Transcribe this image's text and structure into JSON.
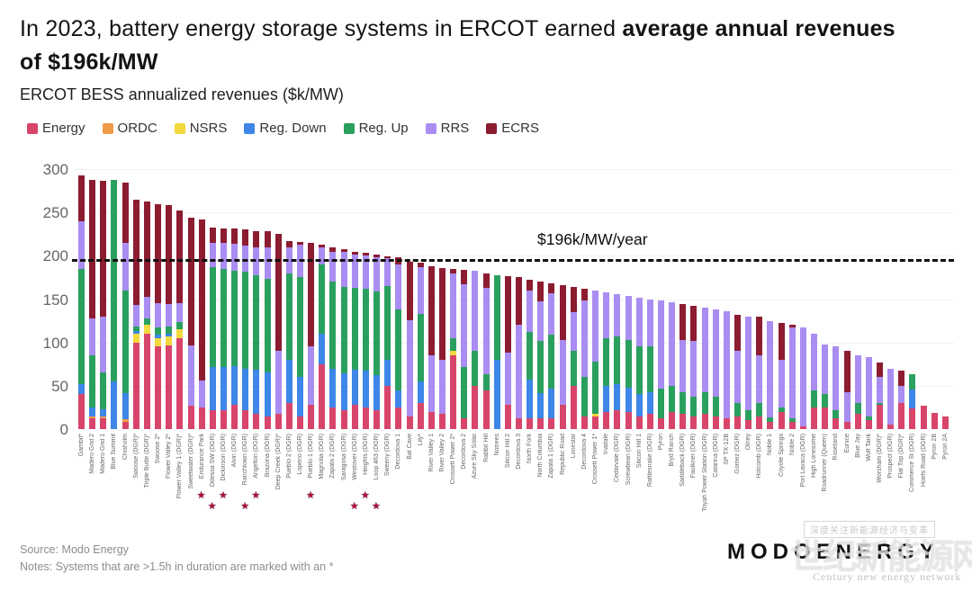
{
  "header": {
    "title_regular": "In 2023, battery energy storage systems in ERCOT earned ",
    "title_bold": "average annual revenues of $196k/MW",
    "subtitle": "ERCOT BESS annualized revenues ($k/MW)"
  },
  "legend": [
    {
      "label": "Energy",
      "color": "#d8456b"
    },
    {
      "label": "ORDC",
      "color": "#ee9b4a"
    },
    {
      "label": "NSRS",
      "color": "#f2d93d"
    },
    {
      "label": "Reg. Down",
      "color": "#3e86e8"
    },
    {
      "label": "Reg. Up",
      "color": "#2aa05f"
    },
    {
      "label": "RRS",
      "color": "#a98df2"
    },
    {
      "label": "ECRS",
      "color": "#8c1c30"
    }
  ],
  "y_axis": {
    "ticks": [
      0,
      50,
      100,
      150,
      200,
      250,
      300
    ]
  },
  "chart_data": {
    "type": "bar",
    "stacked": true,
    "title": "ERCOT BESS annualized revenues ($k/MW)",
    "ylabel": "$k/MW",
    "ylim": [
      0,
      300
    ],
    "grid": "faint-horizontal",
    "legend_position": "top-left",
    "average_line": {
      "value": 196,
      "label": "$196k/MW/year"
    },
    "segments": [
      "Energy",
      "ORDC",
      "NSRS",
      "Reg. Down",
      "Reg. Up",
      "RRS",
      "ECRS"
    ],
    "segment_colors": [
      "#d8456b",
      "#ee9b4a",
      "#f2d93d",
      "#3e86e8",
      "#2aa05f",
      "#a98df2",
      "#8c1c30"
    ],
    "bars": [
      {
        "label": "Gambit*",
        "v": [
          40,
          0,
          0,
          12,
          133,
          55,
          53
        ]
      },
      {
        "label": "Madero Grid 2",
        "v": [
          12,
          3,
          0,
          10,
          60,
          43,
          160
        ]
      },
      {
        "label": "Madero Grid 1",
        "v": [
          12,
          3,
          0,
          8,
          42,
          65,
          157
        ]
      },
      {
        "label": "Blue Summit",
        "v": [
          0,
          0,
          0,
          55,
          233,
          0,
          0
        ]
      },
      {
        "label": "Chisholm",
        "v": [
          8,
          3,
          0,
          31,
          118,
          55,
          69
        ]
      },
      {
        "label": "Swoose (DGR)*",
        "v": [
          100,
          0,
          10,
          3,
          5,
          25,
          122
        ]
      },
      {
        "label": "Triple Butte (DGR)*",
        "v": [
          110,
          0,
          10,
          0,
          8,
          25,
          110
        ]
      },
      {
        "label": "Swoose 2*",
        "v": [
          95,
          0,
          10,
          4,
          8,
          28,
          114
        ]
      },
      {
        "label": "Flower Valley 2*",
        "v": [
          97,
          0,
          10,
          3,
          8,
          26,
          114
        ]
      },
      {
        "label": "Flower Valley 1 (DGR)*",
        "v": [
          105,
          0,
          10,
          0,
          8,
          22,
          107
        ]
      },
      {
        "label": "Sweetwater (DGR)*",
        "v": [
          27,
          0,
          0,
          0,
          0,
          70,
          147
        ]
      },
      {
        "label": "Endurance Park",
        "v": [
          25,
          0,
          0,
          0,
          0,
          31,
          186
        ],
        "star": 1
      },
      {
        "label": "Odessa SW (DGR)",
        "v": [
          22,
          0,
          0,
          50,
          115,
          28,
          18
        ],
        "star": 2
      },
      {
        "label": "Dickinson (DGR)",
        "v": [
          22,
          0,
          0,
          50,
          113,
          30,
          17
        ],
        "star": 1
      },
      {
        "label": "Alvin (DGR)",
        "v": [
          28,
          0,
          0,
          45,
          110,
          31,
          17
        ]
      },
      {
        "label": "Ranchtown (DGR)",
        "v": [
          22,
          0,
          0,
          48,
          112,
          30,
          18
        ],
        "star": 2
      },
      {
        "label": "Angelton (DGR)",
        "v": [
          18,
          0,
          0,
          50,
          110,
          32,
          18
        ],
        "star": 1
      },
      {
        "label": "Brazoria (DGR)",
        "v": [
          15,
          0,
          0,
          50,
          108,
          37,
          18
        ]
      },
      {
        "label": "Deep Creek (DGR)*",
        "v": [
          18,
          0,
          0,
          0,
          0,
          72,
          135
        ]
      },
      {
        "label": "Pueblo 2 (DGR)",
        "v": [
          30,
          0,
          0,
          50,
          100,
          30,
          7
        ]
      },
      {
        "label": "Lopeno (DGR)",
        "v": [
          15,
          0,
          0,
          45,
          115,
          38,
          3
        ]
      },
      {
        "label": "Pueblo 1 (DGR)",
        "v": [
          28,
          0,
          0,
          0,
          0,
          67,
          120
        ],
        "star": 1
      },
      {
        "label": "Magnolia (DGR)",
        "v": [
          75,
          0,
          0,
          35,
          80,
          20,
          3
        ]
      },
      {
        "label": "Zapata 2 (DGR)",
        "v": [
          25,
          0,
          0,
          45,
          100,
          35,
          5
        ]
      },
      {
        "label": "Saragosa (DGR)",
        "v": [
          22,
          0,
          0,
          42,
          100,
          40,
          4
        ]
      },
      {
        "label": "Westover (DGR)",
        "v": [
          28,
          0,
          0,
          40,
          95,
          38,
          4
        ],
        "star": 2
      },
      {
        "label": "Heights (DGR)",
        "v": [
          25,
          0,
          0,
          42,
          95,
          38,
          3
        ],
        "star": 1
      },
      {
        "label": "Loop 463 (DGR)",
        "v": [
          22,
          0,
          0,
          40,
          97,
          39,
          3
        ],
        "star": 2
      },
      {
        "label": "Sweeny (DGR)",
        "v": [
          50,
          0,
          0,
          30,
          85,
          32,
          2
        ]
      },
      {
        "label": "Decordova 1",
        "v": [
          25,
          0,
          0,
          20,
          93,
          52,
          8
        ]
      },
      {
        "label": "Bat Cave",
        "v": [
          15,
          0,
          0,
          0,
          0,
          111,
          67
        ]
      },
      {
        "label": "Lily*",
        "v": [
          30,
          0,
          0,
          25,
          78,
          54,
          5
        ]
      },
      {
        "label": "River Valley 1",
        "v": [
          20,
          0,
          0,
          0,
          0,
          65,
          103
        ]
      },
      {
        "label": "River Valley 2",
        "v": [
          18,
          0,
          0,
          0,
          0,
          62,
          106
        ]
      },
      {
        "label": "Crossett Power 2*",
        "v": [
          85,
          0,
          5,
          0,
          15,
          75,
          5
        ]
      },
      {
        "label": "Decordova 2",
        "v": [
          12,
          0,
          0,
          0,
          60,
          95,
          17
        ]
      },
      {
        "label": "Azure Sky Solar",
        "v": [
          50,
          0,
          0,
          0,
          40,
          93,
          0
        ]
      },
      {
        "label": "Rabbit Hill",
        "v": [
          45,
          0,
          0,
          0,
          18,
          100,
          17
        ]
      },
      {
        "label": "Notrees",
        "v": [
          0,
          0,
          0,
          80,
          98,
          0,
          0
        ]
      },
      {
        "label": "Silicon Hill 2",
        "v": [
          28,
          0,
          0,
          0,
          0,
          60,
          88
        ]
      },
      {
        "label": "Decordova 3",
        "v": [
          12,
          0,
          0,
          0,
          0,
          108,
          55
        ]
      },
      {
        "label": "North Fork",
        "v": [
          12,
          0,
          0,
          45,
          55,
          48,
          12
        ]
      },
      {
        "label": "North Columbia",
        "v": [
          12,
          0,
          0,
          30,
          60,
          45,
          23
        ]
      },
      {
        "label": "Zapata 1 (DGR)",
        "v": [
          12,
          0,
          0,
          35,
          62,
          48,
          11
        ]
      },
      {
        "label": "Republic Road",
        "v": [
          28,
          0,
          0,
          0,
          0,
          75,
          63
        ]
      },
      {
        "label": "Lonestar",
        "v": [
          50,
          0,
          0,
          0,
          40,
          45,
          29
        ]
      },
      {
        "label": "Decordova 4",
        "v": [
          15,
          0,
          0,
          0,
          45,
          88,
          14
        ]
      },
      {
        "label": "Crossett Power 1*",
        "v": [
          15,
          0,
          3,
          0,
          60,
          82,
          0
        ]
      },
      {
        "label": "Inadale",
        "v": [
          20,
          0,
          0,
          30,
          55,
          53,
          0
        ]
      },
      {
        "label": "Cedarvale (DGR)",
        "v": [
          22,
          0,
          0,
          30,
          55,
          49,
          0
        ]
      },
      {
        "label": "Screwbean (DGR)",
        "v": [
          20,
          0,
          0,
          28,
          55,
          51,
          0
        ]
      },
      {
        "label": "Silicon Hill 1",
        "v": [
          15,
          0,
          0,
          25,
          55,
          57,
          0
        ]
      },
      {
        "label": "Rattlesnake (DGR)",
        "v": [
          18,
          0,
          0,
          25,
          52,
          55,
          0
        ]
      },
      {
        "label": "Pyron",
        "v": [
          12,
          0,
          0,
          0,
          35,
          101,
          0
        ]
      },
      {
        "label": "Bryd Ranch",
        "v": [
          20,
          0,
          0,
          0,
          30,
          96,
          0
        ]
      },
      {
        "label": "Saddleback (DGR)",
        "v": [
          18,
          0,
          0,
          0,
          25,
          60,
          41
        ]
      },
      {
        "label": "Faulkner (DGR)",
        "v": [
          15,
          0,
          0,
          0,
          22,
          65,
          40
        ]
      },
      {
        "label": "Toyah Power Station (DGR)",
        "v": [
          18,
          0,
          0,
          0,
          25,
          97,
          0
        ]
      },
      {
        "label": "Catarina (DGR)",
        "v": [
          15,
          0,
          0,
          0,
          22,
          101,
          0
        ]
      },
      {
        "label": "SP TX-12B",
        "v": [
          12,
          0,
          0,
          0,
          0,
          124,
          0
        ]
      },
      {
        "label": "Gomez (DGR)",
        "v": [
          15,
          0,
          0,
          0,
          15,
          60,
          42
        ]
      },
      {
        "label": "Olney",
        "v": [
          10,
          0,
          0,
          0,
          12,
          108,
          0
        ]
      },
      {
        "label": "Holcomb (DGR)",
        "v": [
          15,
          0,
          0,
          0,
          15,
          55,
          45
        ]
      },
      {
        "label": "Noble 1",
        "v": [
          8,
          0,
          0,
          0,
          5,
          112,
          0
        ]
      },
      {
        "label": "Coyote Springs",
        "v": [
          20,
          0,
          0,
          0,
          5,
          55,
          42
        ]
      },
      {
        "label": "Noble 2",
        "v": [
          8,
          0,
          0,
          0,
          4,
          105,
          3
        ]
      },
      {
        "label": "Port Lavaca (DGR)",
        "v": [
          3,
          0,
          0,
          0,
          0,
          114,
          0
        ]
      },
      {
        "label": "High Lonesome",
        "v": [
          25,
          0,
          0,
          0,
          20,
          65,
          0
        ]
      },
      {
        "label": "Roadrunner (Queen)",
        "v": [
          25,
          0,
          0,
          0,
          15,
          58,
          0
        ]
      },
      {
        "label": "Roseland",
        "v": [
          12,
          0,
          0,
          0,
          10,
          73,
          0
        ]
      },
      {
        "label": "Eunice",
        "v": [
          8,
          0,
          0,
          0,
          0,
          35,
          47
        ]
      },
      {
        "label": "Blue Jay",
        "v": [
          18,
          0,
          0,
          0,
          12,
          55,
          0
        ]
      },
      {
        "label": "Wolf Tank",
        "v": [
          10,
          0,
          0,
          0,
          5,
          68,
          0
        ]
      },
      {
        "label": "Worsham (DGR)*",
        "v": [
          28,
          0,
          0,
          0,
          2,
          30,
          17
        ]
      },
      {
        "label": "Prospect (DGR)",
        "v": [
          5,
          0,
          0,
          0,
          0,
          65,
          0
        ]
      },
      {
        "label": "Flat Top (DGR)*",
        "v": [
          30,
          0,
          0,
          0,
          0,
          20,
          17
        ]
      },
      {
        "label": "Commerce St (DGR)",
        "v": [
          24,
          0,
          0,
          22,
          17,
          0,
          0
        ]
      },
      {
        "label": "Hoefs Road (DGR)",
        "v": [
          27,
          0,
          0,
          0,
          0,
          0,
          0
        ]
      },
      {
        "label": "Pyron 2B",
        "v": [
          19,
          0,
          0,
          0,
          0,
          0,
          0
        ]
      },
      {
        "label": "Pyron 2A",
        "v": [
          15,
          0,
          0,
          0,
          0,
          0,
          0
        ]
      }
    ]
  },
  "footer": {
    "source": "Source: Modo Energy",
    "notes": "Notes: Systems that are >1.5h in duration are marked with an *"
  },
  "watermark": {
    "logo": "MODOENERGY",
    "box_text": "深度关注新能源经济与变革",
    "overlay": "世纪新能源网",
    "caption": "Century new energy network"
  }
}
